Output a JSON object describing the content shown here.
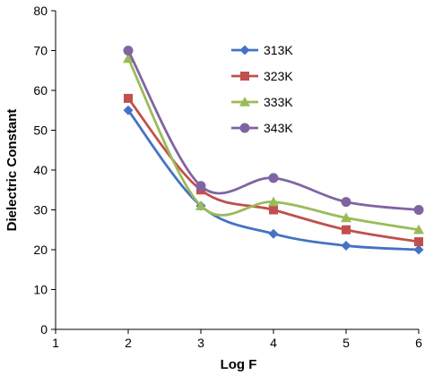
{
  "chart_data": {
    "type": "line",
    "title": "",
    "xlabel": "Log F",
    "ylabel": "Dielectric Constant",
    "xlim": [
      1,
      6
    ],
    "ylim": [
      0,
      80
    ],
    "xticks": [
      1,
      2,
      3,
      4,
      5,
      6
    ],
    "yticks": [
      0,
      10,
      20,
      30,
      40,
      50,
      60,
      70,
      80
    ],
    "grid": false,
    "smooth": true,
    "legend_position": "top-right",
    "series": [
      {
        "name": "313K",
        "color": "#4472C4",
        "marker": "diamond",
        "x": [
          2,
          3,
          4,
          5,
          6
        ],
        "y": [
          55,
          31,
          24,
          21,
          20
        ]
      },
      {
        "name": "323K",
        "color": "#C0504D",
        "marker": "square",
        "x": [
          2,
          3,
          4,
          5,
          6
        ],
        "y": [
          58,
          35,
          30,
          25,
          22
        ]
      },
      {
        "name": "333K",
        "color": "#9BBB59",
        "marker": "triangle",
        "x": [
          2,
          3,
          4,
          5,
          6
        ],
        "y": [
          68,
          31,
          32,
          28,
          25
        ]
      },
      {
        "name": "343K",
        "color": "#8064A2",
        "marker": "circle",
        "x": [
          2,
          3,
          4,
          5,
          6
        ],
        "y": [
          70,
          36,
          38,
          32,
          30
        ]
      }
    ]
  }
}
